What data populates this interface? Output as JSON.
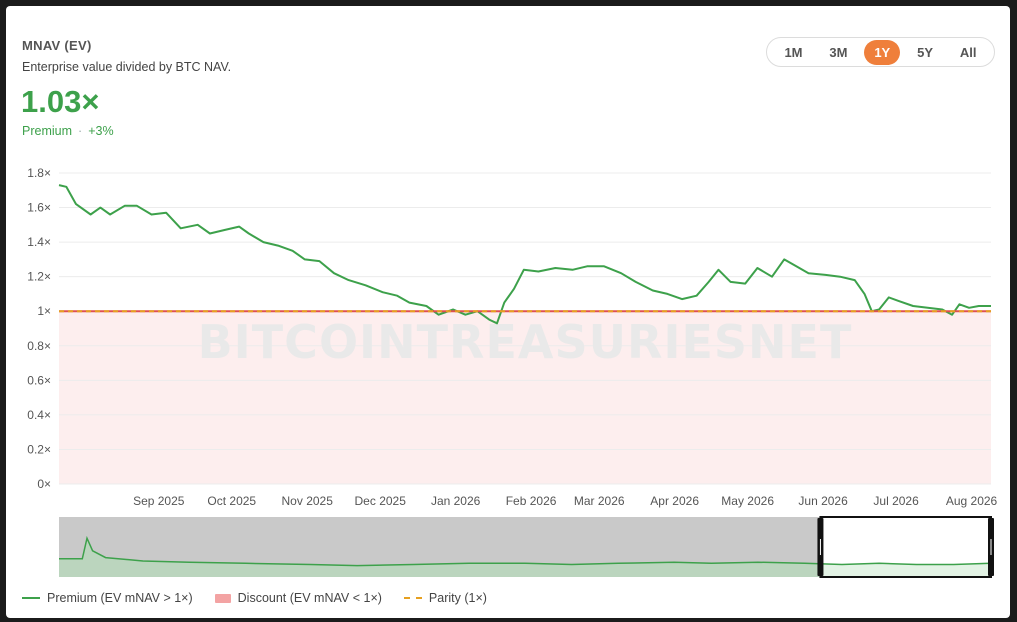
{
  "header": {
    "title": "MNAV (EV)",
    "subtitle": "Enterprise value divided by BTC NAV.",
    "value": "1.03×",
    "status": "Premium",
    "change": "+3%"
  },
  "ranges": [
    "1M",
    "3M",
    "1Y",
    "5Y",
    "All"
  ],
  "active_range": "1Y",
  "watermark": "BITCOINTREASURIESNET",
  "legend": {
    "premium": "Premium (EV mNAV > 1×)",
    "discount": "Discount (EV mNAV < 1×)",
    "parity": "Parity (1×)"
  },
  "colors": {
    "line": "#3da14b",
    "discount_fill": "#fdeeee",
    "parity": "#e6a020",
    "accent": "#ef7f3b"
  },
  "chart_data": {
    "type": "line",
    "title": "MNAV (EV)",
    "y_ticks": [
      "0×",
      "0.2×",
      "0.4×",
      "0.6×",
      "0.8×",
      "1×",
      "1.2×",
      "1.4×",
      "1.6×",
      "1.8×"
    ],
    "x_tick_labels": [
      "Sep 2025",
      "Oct 2025",
      "Nov 2025",
      "Dec 2025",
      "Jan 2026",
      "Feb 2026",
      "Mar 2026",
      "Apr 2026",
      "May 2026",
      "Jun 2026",
      "Jul 2026",
      "Aug 2026"
    ],
    "ylim": [
      0,
      1.8
    ],
    "xlim": [
      "2025-08-05",
      "2026-08-23"
    ],
    "grid": true,
    "parity": 1,
    "series": [
      {
        "name": "Premium (EV mNAV > 1×)",
        "points": [
          [
            "2025-08-05",
            1.73
          ],
          [
            "2025-08-08",
            1.72
          ],
          [
            "2025-08-12",
            1.62
          ],
          [
            "2025-08-18",
            1.56
          ],
          [
            "2025-08-22",
            1.6
          ],
          [
            "2025-08-26",
            1.56
          ],
          [
            "2025-09-01",
            1.61
          ],
          [
            "2025-09-06",
            1.61
          ],
          [
            "2025-09-12",
            1.56
          ],
          [
            "2025-09-18",
            1.57
          ],
          [
            "2025-09-24",
            1.48
          ],
          [
            "2025-10-01",
            1.5
          ],
          [
            "2025-10-06",
            1.45
          ],
          [
            "2025-10-12",
            1.47
          ],
          [
            "2025-10-18",
            1.49
          ],
          [
            "2025-10-22",
            1.45
          ],
          [
            "2025-10-28",
            1.4
          ],
          [
            "2025-11-03",
            1.38
          ],
          [
            "2025-11-09",
            1.35
          ],
          [
            "2025-11-14",
            1.3
          ],
          [
            "2025-11-20",
            1.29
          ],
          [
            "2025-11-26",
            1.22
          ],
          [
            "2025-12-02",
            1.18
          ],
          [
            "2025-12-09",
            1.15
          ],
          [
            "2025-12-16",
            1.11
          ],
          [
            "2025-12-22",
            1.09
          ],
          [
            "2025-12-27",
            1.05
          ],
          [
            "2026-01-03",
            1.03
          ],
          [
            "2026-01-08",
            0.98
          ],
          [
            "2026-01-14",
            1.01
          ],
          [
            "2026-01-19",
            0.98
          ],
          [
            "2026-01-24",
            1.0
          ],
          [
            "2026-01-29",
            0.95
          ],
          [
            "2026-02-01",
            0.93
          ],
          [
            "2026-02-04",
            1.05
          ],
          [
            "2026-02-08",
            1.13
          ],
          [
            "2026-02-12",
            1.24
          ],
          [
            "2026-02-18",
            1.23
          ],
          [
            "2026-02-25",
            1.25
          ],
          [
            "2026-03-04",
            1.24
          ],
          [
            "2026-03-10",
            1.26
          ],
          [
            "2026-03-17",
            1.26
          ],
          [
            "2026-03-24",
            1.22
          ],
          [
            "2026-03-30",
            1.17
          ],
          [
            "2026-04-06",
            1.12
          ],
          [
            "2026-04-12",
            1.1
          ],
          [
            "2026-04-18",
            1.07
          ],
          [
            "2026-04-24",
            1.09
          ],
          [
            "2026-04-29",
            1.17
          ],
          [
            "2026-05-03",
            1.24
          ],
          [
            "2026-05-08",
            1.17
          ],
          [
            "2026-05-14",
            1.16
          ],
          [
            "2026-05-19",
            1.25
          ],
          [
            "2026-05-25",
            1.2
          ],
          [
            "2026-05-30",
            1.3
          ],
          [
            "2026-06-04",
            1.26
          ],
          [
            "2026-06-09",
            1.22
          ],
          [
            "2026-06-16",
            1.21
          ],
          [
            "2026-06-22",
            1.2
          ],
          [
            "2026-06-28",
            1.18
          ],
          [
            "2026-07-02",
            1.1
          ],
          [
            "2026-07-05",
            1.0
          ],
          [
            "2026-07-08",
            1.01
          ],
          [
            "2026-07-12",
            1.08
          ],
          [
            "2026-07-16",
            1.06
          ],
          [
            "2026-07-22",
            1.03
          ],
          [
            "2026-07-28",
            1.02
          ],
          [
            "2026-08-03",
            1.01
          ],
          [
            "2026-08-07",
            0.98
          ],
          [
            "2026-08-10",
            1.04
          ],
          [
            "2026-08-14",
            1.02
          ],
          [
            "2026-08-18",
            1.03
          ],
          [
            "2026-08-23",
            1.03
          ]
        ]
      }
    ],
    "navigator": {
      "points": [
        [
          0,
          0.16
        ],
        [
          0.025,
          0.16
        ],
        [
          0.03,
          0.34
        ],
        [
          0.036,
          0.23
        ],
        [
          0.05,
          0.17
        ],
        [
          0.09,
          0.14
        ],
        [
          0.14,
          0.13
        ],
        [
          0.2,
          0.12
        ],
        [
          0.27,
          0.11
        ],
        [
          0.32,
          0.1
        ],
        [
          0.38,
          0.11
        ],
        [
          0.44,
          0.12
        ],
        [
          0.5,
          0.12
        ],
        [
          0.55,
          0.11
        ],
        [
          0.6,
          0.12
        ],
        [
          0.66,
          0.13
        ],
        [
          0.7,
          0.12
        ],
        [
          0.75,
          0.13
        ],
        [
          0.8,
          0.12
        ],
        [
          0.84,
          0.11
        ],
        [
          0.88,
          0.12
        ],
        [
          0.92,
          0.11
        ],
        [
          0.96,
          0.11
        ],
        [
          1,
          0.12
        ]
      ],
      "selection": [
        0.817,
        1
      ]
    }
  }
}
